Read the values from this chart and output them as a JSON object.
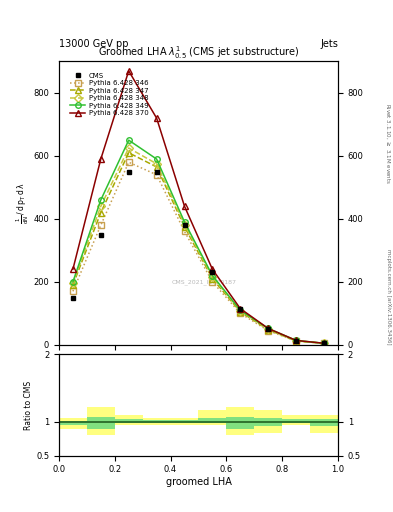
{
  "title": "Groomed LHA $\\lambda^{1}_{0.5}$ (CMS jet substructure)",
  "header_left": "13000 GeV pp",
  "header_right": "Jets",
  "right_label_top": "Rivet 3.1.10, $\\geq$ 3.1M events",
  "right_label_bot": "mcplots.cern.ch [arXiv:1306.3436]",
  "watermark": "CMS_2021_I1920187",
  "xlabel": "groomed LHA",
  "ylabel_ratio": "Ratio to CMS",
  "x_data": [
    0.05,
    0.15,
    0.25,
    0.35,
    0.45,
    0.55,
    0.65,
    0.75,
    0.85,
    0.95
  ],
  "cms_data": [
    150,
    350,
    550,
    550,
    380,
    230,
    115,
    50,
    12,
    5
  ],
  "py346_data": [
    170,
    380,
    580,
    540,
    360,
    200,
    100,
    45,
    12,
    5
  ],
  "py347_data": [
    190,
    420,
    610,
    565,
    375,
    210,
    105,
    48,
    12,
    5
  ],
  "py348_data": [
    195,
    440,
    625,
    575,
    382,
    215,
    108,
    50,
    13,
    5
  ],
  "py349_data": [
    200,
    460,
    650,
    590,
    390,
    220,
    110,
    52,
    14,
    5
  ],
  "py370_data": [
    240,
    590,
    870,
    720,
    440,
    240,
    115,
    52,
    14,
    5
  ],
  "ylim_main": [
    0,
    900
  ],
  "yticks_main": [
    0,
    200,
    400,
    600,
    800
  ],
  "ytick_labels_main": [
    "0",
    "200",
    "400",
    "600",
    "800"
  ],
  "ylim_ratio": [
    0.5,
    2.0
  ],
  "yticks_ratio": [
    0.5,
    1.0,
    2.0
  ],
  "ytick_labels_ratio": [
    "0.5",
    "1",
    "2"
  ],
  "color_cms": "black",
  "color_346": "#c8a050",
  "color_347": "#a8a800",
  "color_348": "#c8c840",
  "color_349": "#30c030",
  "color_370": "#8b0000",
  "legend_entries": [
    "CMS",
    "Pythia 6.428 346",
    "Pythia 6.428 347",
    "Pythia 6.428 348",
    "Pythia 6.428 349",
    "Pythia 6.428 370"
  ],
  "ratio_x_edges": [
    0.0,
    0.1,
    0.2,
    0.3,
    0.4,
    0.5,
    0.6,
    0.7,
    0.8,
    0.9,
    1.0
  ],
  "ratio_yellow_lo": [
    0.9,
    0.8,
    0.96,
    0.96,
    0.96,
    0.96,
    0.8,
    0.84,
    0.96,
    0.84
  ],
  "ratio_yellow_hi": [
    1.06,
    1.22,
    1.1,
    1.06,
    1.06,
    1.18,
    1.22,
    1.18,
    1.1,
    1.1
  ],
  "ratio_green_lo": [
    0.96,
    0.9,
    0.99,
    0.99,
    0.99,
    0.99,
    0.9,
    0.94,
    0.99,
    0.94
  ],
  "ratio_green_hi": [
    1.02,
    1.08,
    1.04,
    1.03,
    1.03,
    1.06,
    1.08,
    1.06,
    1.04,
    1.04
  ]
}
